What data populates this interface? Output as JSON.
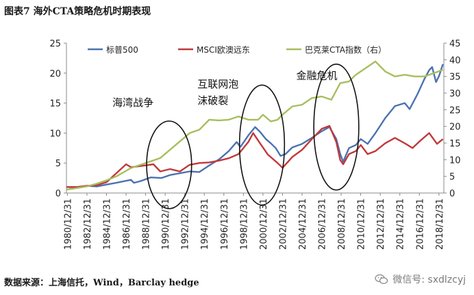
{
  "title": "图表7 海外CTA策略危机时期表现",
  "source": "数据来源：上海信托，Wind，Barclay hedge",
  "watermark": {
    "text": "微信号: sxdlzcyj",
    "icon": "wechat-icon"
  },
  "chart_data": {
    "type": "line",
    "title": "图表7 海外CTA策略危机时期表现",
    "legend_position": "top",
    "grid": false,
    "x_ticks": [
      "1980/12/31",
      "1982/12/31",
      "1984/12/31",
      "1986/12/31",
      "1988/12/31",
      "1990/12/31",
      "1992/12/31",
      "1994/12/31",
      "1996/12/31",
      "1998/12/31",
      "2000/12/31",
      "2002/12/31",
      "2004/12/31",
      "2006/12/31",
      "2008/12/31",
      "2010/12/31",
      "2012/12/31",
      "2014/12/31",
      "2016/12/31",
      "2018/12/31"
    ],
    "x_range": [
      1980.9,
      2019.5
    ],
    "y_left": {
      "ticks": [
        0,
        5,
        10,
        15,
        20,
        25
      ],
      "range": [
        0,
        25
      ]
    },
    "y_right": {
      "ticks": [
        0,
        5,
        10,
        15,
        20,
        25,
        30,
        35,
        40,
        45
      ],
      "range": [
        0,
        45
      ]
    },
    "series": [
      {
        "name": "标普500",
        "color": "#4a72b0",
        "axis": "left",
        "points": [
          [
            1980.9,
            1.0
          ],
          [
            1982.0,
            0.9
          ],
          [
            1983.0,
            1.2
          ],
          [
            1984.0,
            1.1
          ],
          [
            1985.0,
            1.4
          ],
          [
            1986.0,
            1.7
          ],
          [
            1987.5,
            2.2
          ],
          [
            1987.8,
            1.7
          ],
          [
            1988.5,
            2.0
          ],
          [
            1989.5,
            2.6
          ],
          [
            1990.6,
            2.5
          ],
          [
            1991.5,
            3.0
          ],
          [
            1992.5,
            3.3
          ],
          [
            1993.5,
            3.6
          ],
          [
            1994.5,
            3.5
          ],
          [
            1995.5,
            4.6
          ],
          [
            1996.5,
            5.6
          ],
          [
            1997.5,
            7.0
          ],
          [
            1998.3,
            8.5
          ],
          [
            1998.7,
            7.7
          ],
          [
            1999.5,
            9.6
          ],
          [
            2000.2,
            11.0
          ],
          [
            2000.7,
            10.2
          ],
          [
            2001.3,
            9.0
          ],
          [
            2001.8,
            8.3
          ],
          [
            2002.3,
            7.5
          ],
          [
            2002.8,
            6.2
          ],
          [
            2003.3,
            6.5
          ],
          [
            2004.0,
            7.6
          ],
          [
            2005.0,
            8.2
          ],
          [
            2006.0,
            9.2
          ],
          [
            2007.0,
            10.3
          ],
          [
            2007.8,
            11.0
          ],
          [
            2008.5,
            9.0
          ],
          [
            2008.9,
            6.5
          ],
          [
            2009.2,
            5.2
          ],
          [
            2009.8,
            7.5
          ],
          [
            2010.5,
            8.0
          ],
          [
            2011.0,
            9.0
          ],
          [
            2011.7,
            8.2
          ],
          [
            2012.5,
            10.0
          ],
          [
            2013.5,
            12.5
          ],
          [
            2014.5,
            14.5
          ],
          [
            2015.5,
            15.0
          ],
          [
            2016.0,
            14.0
          ],
          [
            2016.8,
            16.5
          ],
          [
            2017.5,
            19.0
          ],
          [
            2018.0,
            20.5
          ],
          [
            2018.3,
            21.0
          ],
          [
            2018.7,
            18.5
          ],
          [
            2019.0,
            19.5
          ],
          [
            2019.4,
            21.5
          ]
        ]
      },
      {
        "name": "MSCI欧澳远东",
        "color": "#c0393b",
        "axis": "left",
        "points": [
          [
            1980.9,
            1.0
          ],
          [
            1982.0,
            1.0
          ],
          [
            1983.0,
            1.2
          ],
          [
            1984.0,
            1.3
          ],
          [
            1985.0,
            1.8
          ],
          [
            1986.0,
            3.3
          ],
          [
            1987.0,
            4.8
          ],
          [
            1987.5,
            4.3
          ],
          [
            1988.5,
            4.5
          ],
          [
            1989.8,
            4.8
          ],
          [
            1990.5,
            3.6
          ],
          [
            1991.5,
            4.0
          ],
          [
            1992.5,
            3.6
          ],
          [
            1993.5,
            4.7
          ],
          [
            1994.5,
            5.0
          ],
          [
            1995.5,
            5.1
          ],
          [
            1996.5,
            5.4
          ],
          [
            1997.5,
            5.8
          ],
          [
            1998.5,
            6.5
          ],
          [
            1999.5,
            8.5
          ],
          [
            2000.0,
            10.0
          ],
          [
            2000.7,
            8.3
          ],
          [
            2001.5,
            6.4
          ],
          [
            2002.5,
            5.0
          ],
          [
            2003.0,
            4.2
          ],
          [
            2004.0,
            6.0
          ],
          [
            2005.0,
            7.2
          ],
          [
            2006.0,
            9.0
          ],
          [
            2007.0,
            10.7
          ],
          [
            2007.8,
            11.2
          ],
          [
            2008.5,
            8.5
          ],
          [
            2008.9,
            5.5
          ],
          [
            2009.2,
            4.8
          ],
          [
            2009.8,
            6.5
          ],
          [
            2010.5,
            7.0
          ],
          [
            2011.0,
            8.0
          ],
          [
            2011.7,
            6.5
          ],
          [
            2012.5,
            7.0
          ],
          [
            2013.5,
            8.3
          ],
          [
            2014.5,
            9.2
          ],
          [
            2015.5,
            8.3
          ],
          [
            2016.3,
            7.5
          ],
          [
            2017.0,
            8.6
          ],
          [
            2018.0,
            10.0
          ],
          [
            2018.8,
            8.2
          ],
          [
            2019.4,
            9.0
          ]
        ]
      },
      {
        "name": "巴克莱CTA指数（右）",
        "color": "#a7be5d",
        "axis": "right",
        "points": [
          [
            1980.9,
            1.0
          ],
          [
            1982.0,
            1.5
          ],
          [
            1983.0,
            2.0
          ],
          [
            1984.0,
            2.8
          ],
          [
            1985.0,
            3.8
          ],
          [
            1986.0,
            5.0
          ],
          [
            1987.5,
            7.5
          ],
          [
            1988.5,
            8.5
          ],
          [
            1989.5,
            9.5
          ],
          [
            1990.5,
            10.5
          ],
          [
            1991.5,
            13.0
          ],
          [
            1992.5,
            15.5
          ],
          [
            1993.5,
            18.0
          ],
          [
            1994.5,
            19.0
          ],
          [
            1995.5,
            22.0
          ],
          [
            1996.5,
            21.8
          ],
          [
            1997.5,
            22.0
          ],
          [
            1998.5,
            23.0
          ],
          [
            1999.5,
            22.0
          ],
          [
            2000.5,
            22.0
          ],
          [
            2001.0,
            23.5
          ],
          [
            2001.8,
            21.5
          ],
          [
            2002.5,
            22.0
          ],
          [
            2003.0,
            23.5
          ],
          [
            2004.0,
            26.0
          ],
          [
            2005.0,
            26.5
          ],
          [
            2006.0,
            28.5
          ],
          [
            2007.0,
            29.0
          ],
          [
            2008.0,
            28.0
          ],
          [
            2008.9,
            33.0
          ],
          [
            2009.8,
            33.5
          ],
          [
            2010.5,
            35.5
          ],
          [
            2011.5,
            37.5
          ],
          [
            2012.5,
            39.5
          ],
          [
            2013.5,
            36.5
          ],
          [
            2014.5,
            35.0
          ],
          [
            2015.5,
            35.5
          ],
          [
            2016.5,
            35.0
          ],
          [
            2017.5,
            35.0
          ],
          [
            2018.5,
            36.0
          ],
          [
            2019.4,
            37.0
          ]
        ]
      }
    ],
    "annotations": [
      {
        "lines": [
          "海湾战争"
        ],
        "year": 1985.6,
        "value": 14.5,
        "circle": {
          "cx": 1991.4,
          "cy": 4.7,
          "rx": 2.3,
          "ry": 7.3
        }
      },
      {
        "lines": [
          "互联网泡",
          "沫破裂"
        ],
        "year": 1994.3,
        "value": 17.6,
        "circle": {
          "cx": 2000.9,
          "cy": 8.0,
          "rx": 2.3,
          "ry": 10.0
        }
      },
      {
        "lines": [
          "金融危机"
        ],
        "year": 2004.4,
        "value": 19.0,
        "circle": {
          "cx": 2008.5,
          "cy": 11.0,
          "rx": 2.3,
          "ry": 10.5
        }
      }
    ]
  }
}
